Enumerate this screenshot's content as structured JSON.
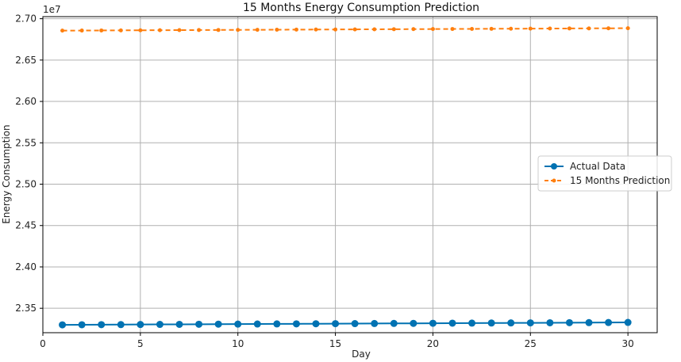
{
  "chart_data": {
    "type": "line",
    "title": "15 Months Energy Consumption Prediction",
    "xlabel": "Day",
    "ylabel": "Energy Consumption",
    "offset_label": "1e7",
    "xlim": [
      0,
      31.5
    ],
    "ylim": [
      2.3205,
      2.7025
    ],
    "x_ticks": [
      0,
      5,
      10,
      15,
      20,
      25,
      30
    ],
    "y_ticks": [
      2.35,
      2.4,
      2.45,
      2.5,
      2.55,
      2.6,
      2.65,
      2.7
    ],
    "y_tick_labels": [
      "2.35",
      "2.40",
      "2.45",
      "2.50",
      "2.55",
      "2.60",
      "2.65",
      "2.70"
    ],
    "grid": true,
    "legend_position": "center-right",
    "x": [
      1,
      2,
      3,
      4,
      5,
      6,
      7,
      8,
      9,
      10,
      11,
      12,
      13,
      14,
      15,
      16,
      17,
      18,
      19,
      20,
      21,
      22,
      23,
      24,
      25,
      26,
      27,
      28,
      29,
      30
    ],
    "series": [
      {
        "name": "Actual Data",
        "color": "#0072b2",
        "style": "solid-marker",
        "values": [
          2.33,
          2.3301,
          2.3302,
          2.3303,
          2.3304,
          2.3305,
          2.3306,
          2.3307,
          2.3308,
          2.3309,
          2.331,
          2.3311,
          2.3312,
          2.3313,
          2.3314,
          2.3315,
          2.3316,
          2.3317,
          2.3318,
          2.3319,
          2.332,
          2.3321,
          2.3322,
          2.3323,
          2.3324,
          2.3325,
          2.3326,
          2.3327,
          2.3328,
          2.3329
        ]
      },
      {
        "name": "15 Months Prediction",
        "color": "#ff7f0e",
        "style": "dashed-marker",
        "values": [
          2.6856,
          2.6857,
          2.6858,
          2.6859,
          2.686,
          2.6861,
          2.6862,
          2.6863,
          2.6864,
          2.6865,
          2.6866,
          2.6867,
          2.6868,
          2.6869,
          2.687,
          2.6871,
          2.6872,
          2.6873,
          2.6874,
          2.6875,
          2.6876,
          2.6877,
          2.6878,
          2.6879,
          2.688,
          2.6881,
          2.6882,
          2.6883,
          2.6884,
          2.6885
        ]
      }
    ]
  }
}
